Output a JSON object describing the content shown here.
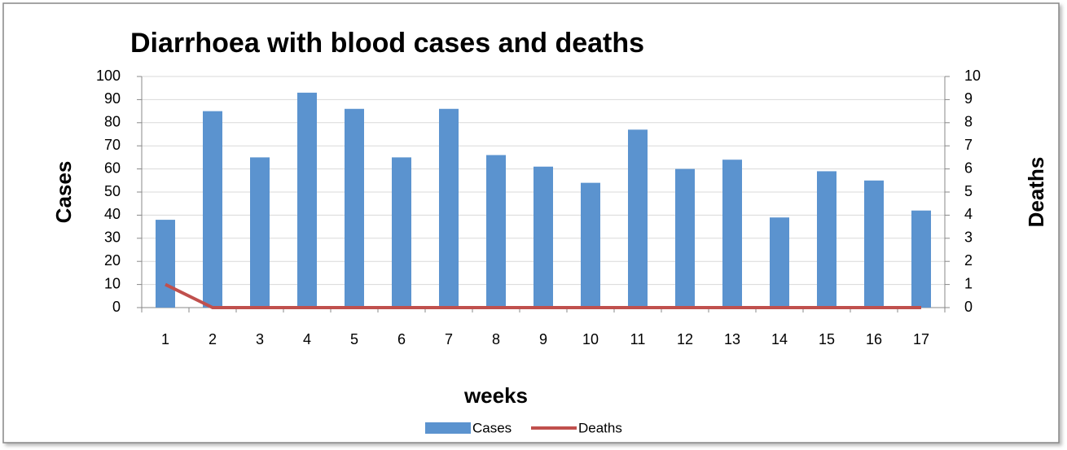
{
  "chart_data": {
    "type": "bar",
    "title": "Diarrhoea with blood cases and deaths",
    "x_label": "weeks",
    "y_label": "Cases",
    "y2_label": "Deaths",
    "categories": [
      "1",
      "2",
      "3",
      "4",
      "5",
      "6",
      "7",
      "8",
      "9",
      "10",
      "11",
      "12",
      "13",
      "14",
      "15",
      "16",
      "17"
    ],
    "series": [
      {
        "name": "Cases",
        "color": "#5b93cf",
        "type": "bar",
        "values": [
          38,
          85,
          65,
          93,
          86,
          65,
          86,
          66,
          61,
          54,
          77,
          60,
          64,
          39,
          59,
          55,
          42
        ]
      },
      {
        "name": "Deaths",
        "color": "#c0504d",
        "type": "line",
        "axis": "y2",
        "values": [
          1,
          0,
          0,
          0,
          0,
          0,
          0,
          0,
          0,
          0,
          0,
          0,
          0,
          0,
          0,
          0,
          0
        ]
      }
    ],
    "ylim": [
      0,
      100
    ],
    "yticks": [
      0,
      10,
      20,
      30,
      40,
      50,
      60,
      70,
      80,
      90,
      100
    ],
    "y2lim": [
      0,
      10
    ],
    "y2ticks": [
      0,
      1,
      2,
      3,
      4,
      5,
      6,
      7,
      8,
      9,
      10
    ],
    "grid": true,
    "legend": "bottom"
  }
}
